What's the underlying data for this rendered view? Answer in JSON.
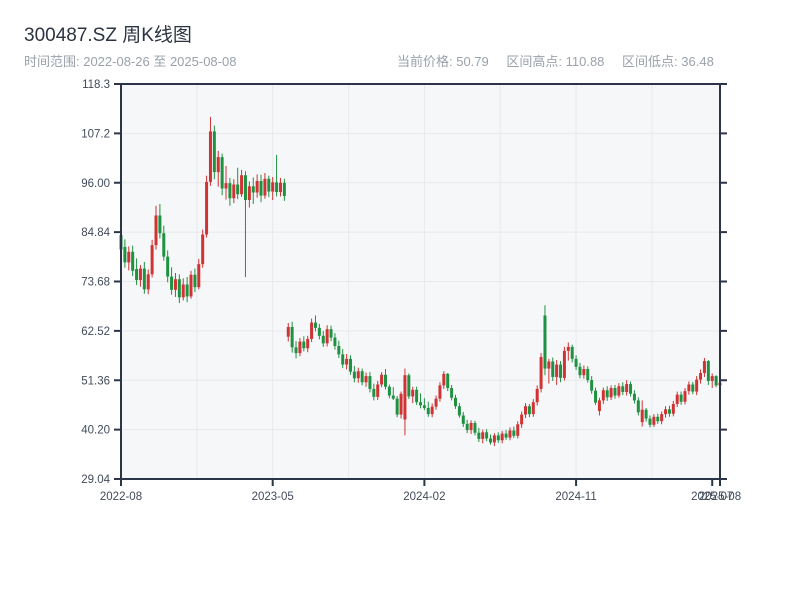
{
  "header": {
    "title": "300487.SZ 周K线图",
    "time_range": "时间范围: 2022-08-26 至 2025-08-08",
    "stats": {
      "current": "当前价格: 50.79",
      "high": "区间高点: 110.88",
      "low": "区间低点: 36.48"
    }
  },
  "chart_data": {
    "type": "candlestick",
    "title": "300487.SZ 周K线图",
    "xlabel": "",
    "ylabel": "",
    "period": "weekly",
    "time_range": [
      "2022-08-26",
      "2025-08-08"
    ],
    "current_price": 50.79,
    "range_high": 110.88,
    "range_low": 36.48,
    "y_range": [
      29.04,
      118.32
    ],
    "grid": true,
    "legend": false,
    "colors": {
      "up": "#cf3333",
      "down": "#1f9242",
      "plot_bg": "#f6f7f9",
      "grid_line": "#e7e9ed",
      "spine": "#2c3547",
      "tick_label": "#424b5a"
    },
    "y_ticks": [
      {
        "value": 118.32,
        "label": "118.3"
      },
      {
        "value": 107.16,
        "label": "107.2"
      },
      {
        "value": 96.0,
        "label": "96.00"
      },
      {
        "value": 84.84,
        "label": "84.84"
      },
      {
        "value": 73.68,
        "label": "73.68"
      },
      {
        "value": 62.52,
        "label": "62.52"
      },
      {
        "value": 51.36,
        "label": "51.36"
      },
      {
        "value": 40.2,
        "label": "40.20"
      },
      {
        "value": 29.04,
        "label": "29.04"
      }
    ],
    "x_ticks": [
      {
        "index": 0,
        "label": "2022-08"
      },
      {
        "index": 39,
        "label": "2023-05"
      },
      {
        "index": 78,
        "label": "2024-02"
      },
      {
        "index": 117,
        "label": "2024-11"
      },
      {
        "index": 152,
        "label": "2025-07"
      },
      {
        "index": 154,
        "label": "2025-08"
      }
    ],
    "grid_week_indices": [
      19.5,
      39,
      58.5,
      78,
      97.5,
      117,
      136.5
    ],
    "n_weeks": 155,
    "ohlc_order": [
      "open",
      "high",
      "low",
      "close"
    ],
    "candles": [
      [
        84.2,
        86.9,
        79.6,
        80.9
      ],
      [
        81.5,
        83.2,
        76.8,
        78.0
      ],
      [
        78.0,
        81.6,
        76.2,
        80.4
      ],
      [
        80.4,
        81.8,
        74.9,
        76.1
      ],
      [
        76.5,
        78.9,
        72.9,
        74.0
      ],
      [
        74.0,
        77.4,
        72.5,
        76.6
      ],
      [
        76.6,
        78.1,
        70.9,
        71.9
      ],
      [
        71.9,
        76.4,
        70.8,
        75.3
      ],
      [
        75.3,
        83.1,
        74.6,
        81.9
      ],
      [
        81.9,
        90.8,
        80.9,
        88.6
      ],
      [
        88.6,
        91.2,
        83.4,
        84.6
      ],
      [
        84.6,
        86.3,
        78.4,
        79.3
      ],
      [
        79.3,
        80.7,
        73.5,
        74.8
      ],
      [
        74.8,
        76.9,
        70.7,
        71.8
      ],
      [
        71.8,
        75.6,
        70.2,
        74.2
      ],
      [
        74.2,
        75.3,
        68.8,
        70.1
      ],
      [
        70.1,
        74.4,
        69.4,
        73.0
      ],
      [
        73.0,
        74.7,
        69.0,
        70.3
      ],
      [
        70.3,
        76.1,
        69.8,
        75.2
      ],
      [
        75.2,
        76.6,
        71.3,
        72.4
      ],
      [
        72.4,
        78.8,
        71.9,
        77.6
      ],
      [
        77.6,
        85.4,
        76.8,
        84.3
      ],
      [
        84.3,
        97.6,
        83.6,
        96.2
      ],
      [
        96.2,
        110.88,
        95.3,
        107.6
      ],
      [
        107.6,
        108.9,
        96.8,
        98.4
      ],
      [
        98.4,
        103.2,
        95.1,
        101.8
      ],
      [
        101.8,
        102.6,
        93.2,
        94.7
      ],
      [
        94.7,
        99.8,
        92.2,
        95.9
      ],
      [
        95.9,
        97.1,
        90.8,
        92.5
      ],
      [
        92.5,
        96.8,
        91.4,
        95.6
      ],
      [
        95.6,
        99.4,
        92.3,
        93.4
      ],
      [
        93.4,
        98.9,
        92.8,
        97.7
      ],
      [
        97.7,
        98.6,
        74.7,
        92.1
      ],
      [
        92.1,
        96.3,
        90.4,
        95.2
      ],
      [
        95.2,
        97.2,
        91.2,
        93.8
      ],
      [
        93.8,
        97.9,
        92.6,
        96.4
      ],
      [
        96.4,
        97.8,
        91.6,
        93.1
      ],
      [
        93.1,
        98.2,
        92.4,
        96.9
      ],
      [
        96.9,
        97.6,
        92.8,
        94.0
      ],
      [
        94.0,
        97.3,
        92.1,
        96.1
      ],
      [
        96.1,
        102.3,
        92.9,
        93.9
      ],
      [
        93.9,
        97.1,
        92.9,
        96.0
      ],
      [
        96.0,
        96.9,
        91.9,
        93.0
      ],
      [
        61.2,
        64.3,
        60.1,
        63.4
      ],
      [
        63.4,
        64.6,
        57.6,
        58.8
      ],
      [
        58.8,
        60.2,
        56.3,
        57.5
      ],
      [
        57.5,
        60.9,
        56.8,
        60.1
      ],
      [
        60.1,
        61.3,
        57.9,
        58.6
      ],
      [
        58.6,
        61.4,
        57.7,
        60.7
      ],
      [
        60.7,
        65.3,
        60.0,
        64.4
      ],
      [
        64.4,
        66.0,
        62.4,
        63.2
      ],
      [
        63.2,
        64.1,
        60.6,
        61.4
      ],
      [
        61.4,
        62.5,
        58.9,
        59.7
      ],
      [
        59.7,
        63.8,
        59.0,
        62.9
      ],
      [
        62.9,
        63.7,
        60.2,
        61.0
      ],
      [
        61.0,
        62.0,
        58.3,
        59.1
      ],
      [
        59.1,
        60.3,
        56.4,
        57.2
      ],
      [
        57.2,
        58.4,
        54.1,
        54.9
      ],
      [
        54.9,
        57.3,
        53.8,
        56.2
      ],
      [
        56.2,
        57.0,
        52.6,
        53.3
      ],
      [
        53.3,
        54.6,
        50.9,
        51.8
      ],
      [
        51.8,
        54.2,
        50.8,
        53.4
      ],
      [
        53.4,
        54.0,
        50.2,
        50.9
      ],
      [
        50.9,
        53.1,
        49.9,
        52.3
      ],
      [
        52.3,
        53.2,
        48.6,
        49.4
      ],
      [
        49.4,
        50.6,
        46.8,
        47.6
      ],
      [
        47.6,
        51.2,
        46.9,
        50.4
      ],
      [
        50.4,
        53.2,
        49.8,
        52.6
      ],
      [
        52.6,
        53.9,
        49.3,
        49.9
      ],
      [
        49.9,
        50.4,
        47.3,
        47.9
      ],
      [
        47.9,
        49.8,
        46.9,
        47.2
      ],
      [
        47.2,
        47.8,
        43.0,
        43.6
      ],
      [
        43.6,
        48.8,
        42.7,
        48.3
      ],
      [
        42.5,
        54.0,
        38.9,
        52.5
      ],
      [
        52.5,
        52.9,
        47.1,
        47.7
      ],
      [
        47.7,
        49.9,
        46.2,
        49.2
      ],
      [
        49.2,
        49.9,
        45.8,
        46.4
      ],
      [
        46.4,
        48.4,
        45.0,
        45.7
      ],
      [
        45.7,
        47.3,
        44.6,
        45.1
      ],
      [
        45.1,
        46.5,
        43.1,
        43.7
      ],
      [
        43.7,
        46.1,
        43.0,
        45.4
      ],
      [
        45.4,
        47.9,
        44.7,
        47.2
      ],
      [
        47.2,
        50.9,
        46.5,
        50.2
      ],
      [
        50.2,
        53.4,
        49.4,
        52.8
      ],
      [
        52.8,
        53.0,
        48.9,
        49.6
      ],
      [
        49.6,
        50.3,
        46.8,
        47.4
      ],
      [
        47.4,
        48.1,
        44.9,
        45.5
      ],
      [
        45.5,
        46.2,
        42.9,
        43.4
      ],
      [
        43.4,
        44.2,
        40.8,
        41.5
      ],
      [
        41.5,
        42.4,
        39.4,
        40.1
      ],
      [
        40.1,
        42.3,
        39.2,
        41.7
      ],
      [
        41.7,
        42.2,
        38.9,
        39.5
      ],
      [
        39.5,
        40.6,
        37.4,
        38.1
      ],
      [
        38.1,
        40.2,
        37.1,
        39.6
      ],
      [
        39.6,
        40.3,
        37.6,
        38.2
      ],
      [
        38.2,
        39.1,
        36.8,
        37.3
      ],
      [
        37.3,
        39.4,
        36.48,
        38.9
      ],
      [
        38.9,
        39.6,
        37.2,
        37.8
      ],
      [
        37.8,
        39.9,
        37.1,
        39.3
      ],
      [
        39.3,
        40.1,
        37.9,
        38.4
      ],
      [
        38.4,
        40.7,
        37.8,
        40.0
      ],
      [
        40.0,
        40.9,
        38.3,
        38.8
      ],
      [
        38.8,
        42.1,
        38.2,
        41.4
      ],
      [
        41.4,
        44.3,
        40.6,
        43.6
      ],
      [
        43.6,
        46.2,
        42.8,
        45.5
      ],
      [
        45.5,
        46.0,
        43.0,
        43.7
      ],
      [
        43.7,
        47.1,
        43.1,
        46.4
      ],
      [
        46.4,
        50.2,
        45.7,
        49.4
      ],
      [
        49.4,
        57.5,
        48.6,
        56.6
      ],
      [
        66.0,
        68.3,
        52.5,
        54.0
      ],
      [
        54.0,
        56.2,
        50.6,
        55.6
      ],
      [
        55.6,
        56.5,
        51.2,
        52.1
      ],
      [
        52.1,
        55.9,
        50.3,
        54.9
      ],
      [
        54.9,
        55.7,
        50.9,
        51.9
      ],
      [
        51.9,
        58.9,
        51.3,
        58.0
      ],
      [
        58.0,
        59.9,
        55.8,
        58.9
      ],
      [
        58.9,
        59.4,
        55.4,
        56.2
      ],
      [
        56.2,
        57.0,
        53.7,
        54.4
      ],
      [
        54.4,
        55.3,
        51.8,
        52.5
      ],
      [
        52.5,
        54.7,
        51.7,
        53.9
      ],
      [
        53.9,
        54.5,
        50.8,
        51.4
      ],
      [
        51.4,
        52.3,
        48.3,
        49.0
      ],
      [
        49.0,
        49.7,
        45.8,
        46.3
      ],
      [
        44.4,
        47.4,
        43.4,
        46.8
      ],
      [
        46.8,
        49.7,
        46.0,
        49.1
      ],
      [
        49.1,
        50.0,
        46.7,
        47.5
      ],
      [
        47.5,
        50.2,
        46.9,
        49.6
      ],
      [
        49.6,
        50.3,
        47.2,
        47.9
      ],
      [
        47.9,
        50.7,
        47.4,
        50.0
      ],
      [
        50.0,
        50.9,
        48.0,
        48.7
      ],
      [
        48.7,
        51.4,
        47.9,
        50.5
      ],
      [
        50.5,
        51.1,
        47.7,
        48.3
      ],
      [
        48.3,
        49.1,
        46.1,
        46.8
      ],
      [
        46.8,
        47.5,
        43.4,
        44.1
      ],
      [
        41.9,
        46.8,
        40.9,
        44.7
      ],
      [
        44.7,
        45.1,
        42.0,
        42.7
      ],
      [
        42.7,
        43.4,
        40.7,
        41.3
      ],
      [
        41.3,
        43.7,
        40.8,
        43.1
      ],
      [
        43.1,
        43.8,
        41.5,
        42.1
      ],
      [
        42.1,
        44.3,
        41.4,
        43.7
      ],
      [
        43.7,
        45.5,
        42.9,
        44.8
      ],
      [
        44.8,
        45.6,
        43.1,
        43.8
      ],
      [
        43.8,
        46.7,
        43.2,
        46.0
      ],
      [
        46.0,
        48.8,
        45.3,
        48.1
      ],
      [
        48.1,
        48.8,
        45.8,
        46.5
      ],
      [
        46.5,
        49.6,
        45.9,
        48.9
      ],
      [
        48.9,
        51.1,
        48.1,
        50.4
      ],
      [
        50.4,
        51.0,
        48.2,
        48.8
      ],
      [
        48.8,
        52.3,
        48.0,
        51.5
      ],
      [
        51.5,
        53.8,
        50.6,
        53.0
      ],
      [
        53.0,
        56.4,
        52.1,
        55.7
      ],
      [
        55.7,
        55.9,
        50.3,
        51.2
      ],
      [
        51.2,
        52.9,
        49.6,
        52.3
      ],
      [
        52.3,
        52.5,
        49.8,
        50.2
      ],
      [
        50.2,
        52.5,
        49.5,
        50.79
      ]
    ]
  }
}
